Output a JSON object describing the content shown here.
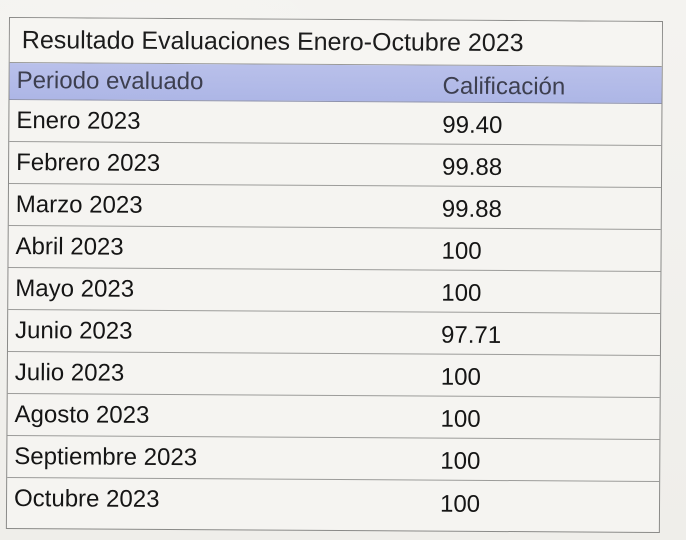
{
  "table": {
    "title": "Resultado Evaluaciones Enero-Octubre 2023",
    "headers": {
      "period": "Periodo evaluado",
      "score": "Calificación"
    },
    "rows": [
      {
        "period": "Enero 2023",
        "score": "99.40"
      },
      {
        "period": "Febrero 2023",
        "score": "99.88"
      },
      {
        "period": "Marzo 2023",
        "score": "99.88"
      },
      {
        "period": "Abril 2023",
        "score": "100"
      },
      {
        "period": "Mayo 2023",
        "score": "100"
      },
      {
        "period": "Junio 2023",
        "score": "97.71"
      },
      {
        "period": "Julio 2023",
        "score": "100"
      },
      {
        "period": "Agosto 2023",
        "score": "100"
      },
      {
        "period": "Septiembre 2023",
        "score": "100"
      },
      {
        "period": "Octubre 2023",
        "score": "100"
      }
    ]
  },
  "colors": {
    "header_fill": "#b2b9e8",
    "grid": "#9a9a98",
    "paper": "#f4f3f0"
  }
}
